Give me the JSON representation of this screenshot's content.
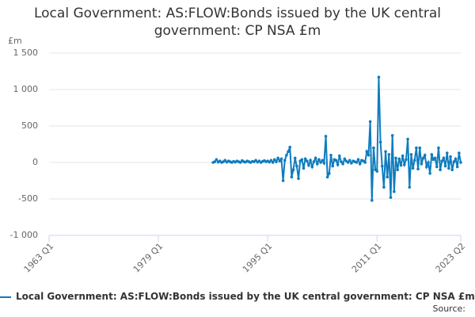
{
  "chart_data": {
    "type": "line",
    "title": "Local Government: AS:FLOW:Bonds issued by the UK central government: CP NSA £m",
    "y_label": "£m",
    "source": "Source:",
    "xlim": [
      "1963 Q1",
      "2023 Q2"
    ],
    "xticks": [
      "1963 Q1",
      "1979 Q1",
      "1995 Q1",
      "2011 Q1",
      "2023 Q2"
    ],
    "ylim": [
      -1000,
      1500
    ],
    "yticks": [
      {
        "value": -1000,
        "label": "-1 000"
      },
      -500,
      0,
      500,
      {
        "value": 1000,
        "label": "1 000"
      },
      {
        "value": 1500,
        "label": "1 500"
      }
    ],
    "grid": true,
    "x": [
      "1987 Q1",
      "1987 Q2",
      "1987 Q3",
      "1987 Q4",
      "1988 Q1",
      "1988 Q2",
      "1988 Q3",
      "1988 Q4",
      "1989 Q1",
      "1989 Q2",
      "1989 Q3",
      "1989 Q4",
      "1990 Q1",
      "1990 Q2",
      "1990 Q3",
      "1990 Q4",
      "1991 Q1",
      "1991 Q2",
      "1991 Q3",
      "1991 Q4",
      "1992 Q1",
      "1992 Q2",
      "1992 Q3",
      "1992 Q4",
      "1993 Q1",
      "1993 Q2",
      "1993 Q3",
      "1993 Q4",
      "1994 Q1",
      "1994 Q2",
      "1994 Q3",
      "1994 Q4",
      "1995 Q1",
      "1995 Q2",
      "1995 Q3",
      "1995 Q4",
      "1996 Q1",
      "1996 Q2",
      "1996 Q3",
      "1996 Q4",
      "1997 Q1",
      "1997 Q2",
      "1997 Q3",
      "1997 Q4",
      "1998 Q1",
      "1998 Q2",
      "1998 Q3",
      "1998 Q4",
      "1999 Q1",
      "1999 Q2",
      "1999 Q3",
      "1999 Q4",
      "2000 Q1",
      "2000 Q2",
      "2000 Q3",
      "2000 Q4",
      "2001 Q1",
      "2001 Q2",
      "2001 Q3",
      "2001 Q4",
      "2002 Q1",
      "2002 Q2",
      "2002 Q3",
      "2002 Q4",
      "2003 Q1",
      "2003 Q2",
      "2003 Q3",
      "2003 Q4",
      "2004 Q1",
      "2004 Q2",
      "2004 Q3",
      "2004 Q4",
      "2005 Q1",
      "2005 Q2",
      "2005 Q3",
      "2005 Q4",
      "2006 Q1",
      "2006 Q2",
      "2006 Q3",
      "2006 Q4",
      "2007 Q1",
      "2007 Q2",
      "2007 Q3",
      "2007 Q4",
      "2008 Q1",
      "2008 Q2",
      "2008 Q3",
      "2008 Q4",
      "2009 Q1",
      "2009 Q2",
      "2009 Q3",
      "2009 Q4",
      "2010 Q1",
      "2010 Q2",
      "2010 Q3",
      "2010 Q4",
      "2011 Q1",
      "2011 Q2",
      "2011 Q3",
      "2011 Q4",
      "2012 Q1",
      "2012 Q2",
      "2012 Q3",
      "2012 Q4",
      "2013 Q1",
      "2013 Q2",
      "2013 Q3",
      "2013 Q4",
      "2014 Q1",
      "2014 Q2",
      "2014 Q3",
      "2014 Q4",
      "2015 Q1",
      "2015 Q2",
      "2015 Q3",
      "2015 Q4",
      "2016 Q1",
      "2016 Q2",
      "2016 Q3",
      "2016 Q4",
      "2017 Q1",
      "2017 Q2",
      "2017 Q3",
      "2017 Q4",
      "2018 Q1",
      "2018 Q2",
      "2018 Q3",
      "2018 Q4",
      "2019 Q1",
      "2019 Q2",
      "2019 Q3",
      "2019 Q4",
      "2020 Q1",
      "2020 Q2",
      "2020 Q3",
      "2020 Q4",
      "2021 Q1",
      "2021 Q2",
      "2021 Q3",
      "2021 Q4",
      "2022 Q1",
      "2022 Q2",
      "2022 Q3",
      "2022 Q4",
      "2023 Q1",
      "2023 Q2"
    ],
    "series": [
      {
        "name": "Local Government: AS:FLOW:Bonds issued by the UK central government: CP NSA £m",
        "color": "#0f7cbf",
        "values": [
          0,
          10,
          40,
          5,
          20,
          0,
          10,
          30,
          5,
          20,
          10,
          0,
          15,
          5,
          20,
          10,
          0,
          25,
          10,
          5,
          20,
          10,
          0,
          15,
          10,
          30,
          5,
          20,
          0,
          15,
          25,
          10,
          20,
          5,
          30,
          0,
          40,
          10,
          60,
          20,
          50,
          -250,
          30,
          100,
          150,
          210,
          -200,
          -100,
          60,
          -50,
          -220,
          20,
          40,
          -80,
          50,
          20,
          -40,
          30,
          -60,
          10,
          60,
          -20,
          40,
          0,
          30,
          -10,
          360,
          -200,
          -150,
          100,
          -50,
          40,
          30,
          -30,
          90,
          10,
          -20,
          50,
          20,
          0,
          30,
          -10,
          20,
          10,
          0,
          40,
          -20,
          30,
          20,
          0,
          150,
          100,
          560,
          -520,
          200,
          -100,
          -120,
          1170,
          280,
          -50,
          -340,
          150,
          -200,
          110,
          -480,
          370,
          -400,
          60,
          -100,
          50,
          -40,
          90,
          -30,
          40,
          320,
          -340,
          110,
          -80,
          30,
          200,
          -90,
          200,
          -20,
          60,
          100,
          -60,
          0,
          -150,
          110,
          40,
          60,
          -60,
          200,
          -100,
          20,
          60,
          -50,
          130,
          -80,
          80,
          -100,
          10,
          50,
          -60,
          130,
          0
        ]
      }
    ]
  }
}
